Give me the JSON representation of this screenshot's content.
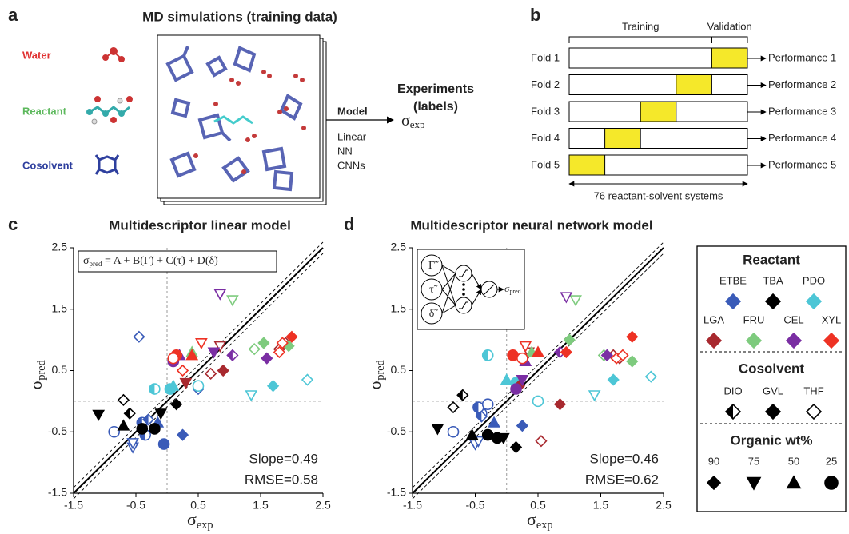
{
  "panel_a": {
    "label": "a",
    "title": "MD simulations (training data)",
    "components": [
      "Water",
      "Reactant",
      "Cosolvent"
    ],
    "experiments": [
      "Experiments",
      "(labels)"
    ],
    "model": "Model",
    "models": [
      "Linear",
      "NN",
      "CNNs"
    ],
    "target": {
      "symbol": "σ",
      "sub": "exp"
    }
  },
  "panel_b": {
    "label": "b",
    "training": "Training",
    "validation": "Validation",
    "folds": [
      "Fold 1",
      "Fold 2",
      "Fold 3",
      "Fold 4",
      "Fold 5"
    ],
    "performances": [
      "Performance 1",
      "Performance 2",
      "Performance 3",
      "Performance 4",
      "Performance 5"
    ],
    "span": "76 reactant-solvent systems"
  },
  "legend": {
    "reactant_title": "Reactant",
    "reactants": [
      {
        "name": "ETBE",
        "color": "#3a5bb8"
      },
      {
        "name": "TBA",
        "color": "#000000"
      },
      {
        "name": "PDO",
        "color": "#4dc6d6"
      },
      {
        "name": "LGA",
        "color": "#a8292f"
      },
      {
        "name": "FRU",
        "color": "#7ecb7e"
      },
      {
        "name": "CEL",
        "color": "#7a2ea3"
      },
      {
        "name": "XYL",
        "color": "#ee3224"
      }
    ],
    "cosolvent_title": "Cosolvent",
    "cosolvents": [
      "DIO",
      "GVL",
      "THF"
    ],
    "wt_title": "Organic wt%",
    "wts": [
      90,
      75,
      50,
      25
    ]
  },
  "chart_data": [
    {
      "type": "scatter",
      "label": "c",
      "title": "Multidescriptor linear model",
      "xlabel": {
        "symbol": "σ",
        "sub": "exp"
      },
      "ylabel": {
        "symbol": "σ",
        "sub": "pred"
      },
      "equation": {
        "symbol": "σ",
        "sub": "pred",
        "rhs": " = A + B(Γ̃) + C(τ̃) + D(δ̃)"
      },
      "annotations": [
        "Slope=0.49",
        "RMSE=0.58"
      ],
      "xlim": [
        -1.5,
        2.5
      ],
      "ylim": [
        -1.5,
        2.5
      ],
      "xticks": [
        -1.5,
        -0.5,
        0.5,
        1.5,
        2.5
      ],
      "yticks": [
        -1.5,
        -0.5,
        0.5,
        1.5,
        2.5
      ],
      "series": [
        {
          "color": "#3a5bb8",
          "x": [
            -0.45,
            -0.85,
            -0.55,
            -0.55,
            -0.4,
            -0.35,
            0.25,
            -0.05,
            -0.3,
            -0.15,
            0.5
          ],
          "values": [
            1.05,
            -0.5,
            -0.75,
            -0.68,
            -0.35,
            -0.55,
            -0.55,
            -0.7,
            -0.3,
            -0.35,
            0.2
          ],
          "shapes": [
            "diamond",
            "circle",
            "tri-down",
            "tri-down",
            "circle",
            "circle",
            "diamond",
            "circle",
            "diamond",
            "tri-up",
            "diamond"
          ],
          "fills": [
            "open",
            "open",
            "open",
            "open",
            "half",
            "half",
            "full",
            "full",
            "half",
            "full",
            "open"
          ]
        },
        {
          "color": "#000000",
          "x": [
            -0.7,
            -1.1,
            -0.7,
            -0.6,
            -0.4,
            -0.2,
            0.15,
            -0.1
          ],
          "values": [
            0.02,
            -0.22,
            -0.4,
            -0.2,
            -0.45,
            -0.45,
            -0.05,
            -0.2
          ],
          "shapes": [
            "diamond",
            "tri-down",
            "tri-up",
            "diamond",
            "circle",
            "circle",
            "diamond",
            "tri-down"
          ],
          "fills": [
            "open",
            "full",
            "full",
            "half",
            "full",
            "full",
            "full",
            "full"
          ]
        },
        {
          "color": "#4dc6d6",
          "x": [
            2.25,
            1.7,
            1.35,
            -0.2,
            0.05,
            0.1,
            0.5
          ],
          "values": [
            0.35,
            0.25,
            0.1,
            0.2,
            0.2,
            0.25,
            0.25
          ],
          "shapes": [
            "diamond",
            "diamond",
            "tri-down",
            "circle",
            "circle",
            "tri-up",
            "circle"
          ],
          "fills": [
            "open",
            "full",
            "open",
            "half",
            "full",
            "full",
            "open"
          ]
        },
        {
          "color": "#a8292f",
          "x": [
            1.8,
            1.9,
            0.7,
            0.9,
            0.85,
            0.3
          ],
          "values": [
            0.85,
            0.95,
            0.45,
            0.5,
            0.9,
            0.3
          ],
          "shapes": [
            "diamond",
            "diamond",
            "diamond",
            "diamond",
            "tri-down",
            "tri-down"
          ],
          "fills": [
            "open",
            "open",
            "open",
            "full",
            "open",
            "full"
          ]
        },
        {
          "color": "#7ecb7e",
          "x": [
            1.05,
            1.95,
            1.55,
            1.4,
            0.4
          ],
          "values": [
            1.65,
            0.9,
            0.95,
            0.85,
            0.8
          ],
          "shapes": [
            "tri-down",
            "diamond",
            "diamond",
            "diamond",
            "tri-up"
          ],
          "fills": [
            "open",
            "full",
            "full",
            "open",
            "full"
          ]
        },
        {
          "color": "#7a2ea3",
          "x": [
            0.85,
            1.6,
            1.05,
            0.75,
            0.1,
            0.2
          ],
          "values": [
            1.75,
            0.7,
            0.75,
            0.8,
            0.65,
            0.75
          ],
          "shapes": [
            "tri-down",
            "diamond",
            "diamond",
            "tri-down",
            "circle",
            "tri-up"
          ],
          "fills": [
            "open",
            "full",
            "half",
            "full",
            "full",
            "full"
          ]
        },
        {
          "color": "#ee3224",
          "x": [
            2.0,
            1.8,
            1.85,
            0.55,
            0.15,
            0.1,
            0.4,
            0.25
          ],
          "values": [
            1.05,
            0.8,
            0.95,
            0.95,
            0.75,
            0.7,
            0.75,
            0.5
          ],
          "shapes": [
            "diamond",
            "diamond",
            "diamond",
            "tri-down",
            "circle",
            "circle",
            "tri-up",
            "diamond"
          ],
          "fills": [
            "full",
            "open",
            "open",
            "open",
            "full",
            "open",
            "full",
            "open"
          ]
        }
      ]
    },
    {
      "type": "scatter",
      "label": "d",
      "title": "Multidescriptor neural network model",
      "xlabel": {
        "symbol": "σ",
        "sub": "exp"
      },
      "ylabel": {
        "symbol": "σ",
        "sub": "pred"
      },
      "network": {
        "inputs": [
          "Γ̃",
          "τ̃",
          "δ̃"
        ],
        "symbol": "σ",
        "sub": "pred"
      },
      "annotations": [
        "Slope=0.46",
        "RMSE=0.62"
      ],
      "xlim": [
        -1.5,
        2.5
      ],
      "ylim": [
        -1.5,
        2.5
      ],
      "xticks": [
        -1.5,
        -0.5,
        0.5,
        1.5,
        2.5
      ],
      "yticks": [
        -1.5,
        -0.5,
        0.5,
        1.5,
        2.5
      ],
      "series": [
        {
          "color": "#3a5bb8",
          "x": [
            -0.85,
            -0.5,
            -0.45,
            -0.4,
            -0.45,
            0.25,
            -0.2,
            -0.3,
            -0.4
          ],
          "values": [
            -0.5,
            -0.7,
            -0.65,
            -0.2,
            -0.1,
            -0.4,
            -0.35,
            -0.05,
            -0.25
          ],
          "shapes": [
            "circle",
            "tri-down",
            "tri-down",
            "circle",
            "circle",
            "diamond",
            "tri-up",
            "circle",
            "diamond"
          ],
          "fills": [
            "open",
            "open",
            "open",
            "half",
            "half",
            "full",
            "full",
            "open",
            "half"
          ]
        },
        {
          "color": "#000000",
          "x": [
            -1.1,
            -0.7,
            -0.85,
            -0.3,
            -0.15,
            0.15,
            -0.05,
            -0.55
          ],
          "values": [
            -0.45,
            0.1,
            -0.1,
            -0.55,
            -0.6,
            -0.75,
            -0.6,
            -0.55
          ],
          "shapes": [
            "tri-down",
            "diamond",
            "diamond",
            "circle",
            "circle",
            "diamond",
            "tri-down",
            "tri-up"
          ],
          "fills": [
            "full",
            "half",
            "open",
            "full",
            "full",
            "full",
            "full",
            "full"
          ]
        },
        {
          "color": "#4dc6d6",
          "x": [
            2.3,
            1.7,
            1.4,
            -0.3,
            0.15,
            0.0,
            0.5
          ],
          "values": [
            0.4,
            0.35,
            0.1,
            0.75,
            0.3,
            0.35,
            0.0
          ],
          "shapes": [
            "diamond",
            "diamond",
            "tri-down",
            "circle",
            "circle",
            "tri-up",
            "circle"
          ],
          "fills": [
            "open",
            "full",
            "open",
            "half",
            "full",
            "full",
            "open"
          ]
        },
        {
          "color": "#a8292f",
          "x": [
            0.85,
            0.55,
            1.8,
            1.7,
            0.35,
            0.2
          ],
          "values": [
            -0.05,
            -0.65,
            0.7,
            0.75,
            0.8,
            0.25
          ],
          "shapes": [
            "diamond",
            "diamond",
            "diamond",
            "diamond",
            "tri-down",
            "diamond"
          ],
          "fills": [
            "full",
            "open",
            "open",
            "open",
            "open",
            "full"
          ]
        },
        {
          "color": "#7ecb7e",
          "x": [
            1.1,
            2.0,
            1.55,
            1.0,
            0.4
          ],
          "values": [
            1.65,
            0.65,
            0.75,
            1.0,
            0.8
          ],
          "shapes": [
            "tri-down",
            "diamond",
            "diamond",
            "diamond",
            "tri-up"
          ],
          "fills": [
            "open",
            "full",
            "open",
            "full",
            "full"
          ]
        },
        {
          "color": "#7a2ea3",
          "x": [
            0.95,
            1.6,
            0.85,
            0.25,
            0.15,
            0.3
          ],
          "values": [
            1.7,
            0.75,
            0.8,
            0.35,
            0.2,
            0.65
          ],
          "shapes": [
            "tri-down",
            "diamond",
            "diamond",
            "tri-down",
            "circle",
            "tri-up"
          ],
          "fills": [
            "open",
            "full",
            "half",
            "full",
            "full",
            "full"
          ]
        },
        {
          "color": "#ee3224",
          "x": [
            2.0,
            1.75,
            1.85,
            0.3,
            0.1,
            0.25,
            0.5,
            0.95
          ],
          "values": [
            1.05,
            0.7,
            0.75,
            0.9,
            0.75,
            0.7,
            0.8,
            0.8
          ],
          "shapes": [
            "diamond",
            "diamond",
            "diamond",
            "tri-down",
            "circle",
            "circle",
            "tri-up",
            "diamond"
          ],
          "fills": [
            "full",
            "open",
            "open",
            "open",
            "full",
            "open",
            "full",
            "full"
          ]
        }
      ]
    }
  ]
}
